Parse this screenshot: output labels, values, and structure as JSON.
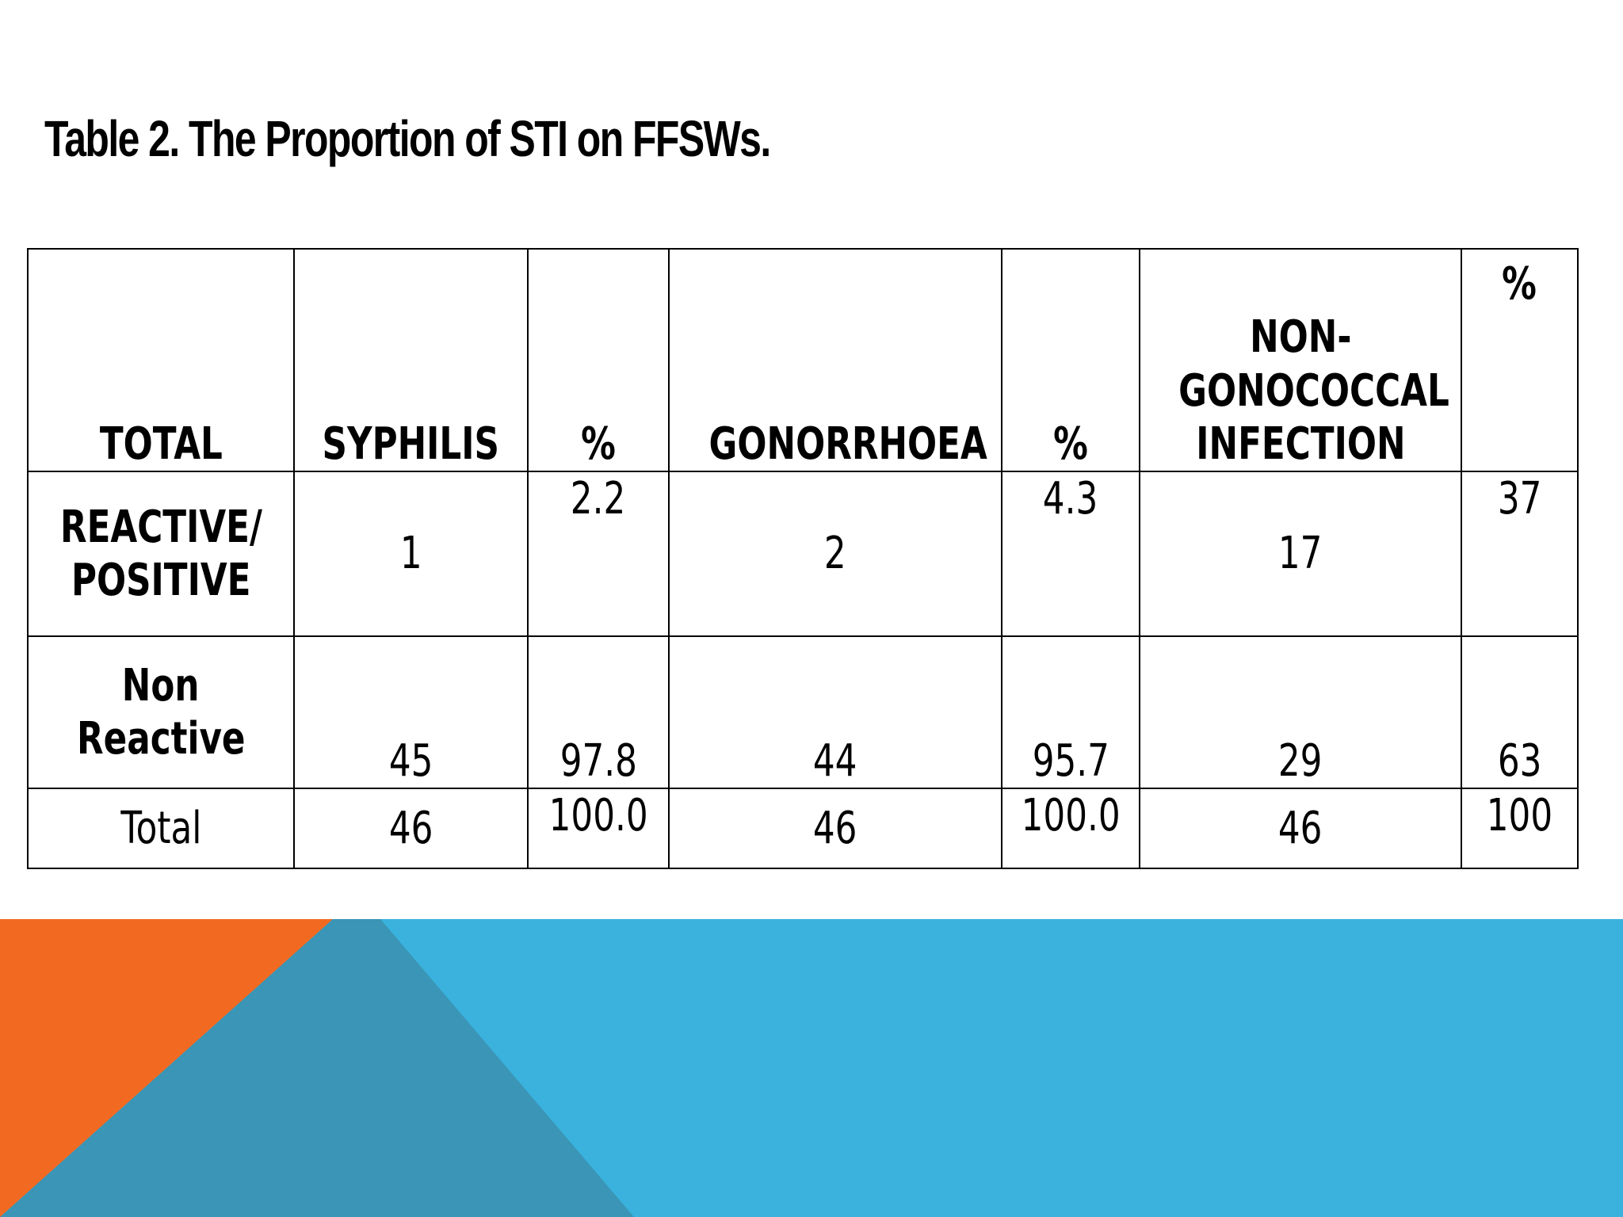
{
  "title": "Table 2. The Proportion of STI on FFSWs.",
  "table": {
    "headers": {
      "total": "TOTAL",
      "syphilis": "SYPHILIS",
      "pct1": "%",
      "gonorrhoea": "GONORRHOEA",
      "pct2": "%",
      "ngi_line1": "NON-",
      "ngi_line2": "GONOCOCCAL",
      "ngi_line3": "INFECTION",
      "pct3": "%"
    },
    "rows": [
      {
        "label_line1": "REACTIVE/",
        "label_line2": "POSITIVE",
        "syphilis": "1",
        "syphilis_pct": "2.2",
        "gonorrhoea": "2",
        "gonorrhoea_pct": "4.3",
        "ngi": "17",
        "ngi_pct": "37"
      },
      {
        "label_line1": "Non",
        "label_line2": "Reactive",
        "syphilis": "45",
        "syphilis_pct": "97.8",
        "gonorrhoea": "44",
        "gonorrhoea_pct": "95.7",
        "ngi": "29",
        "ngi_pct": "63"
      },
      {
        "label": "Total",
        "syphilis": "46",
        "syphilis_pct": "100.0",
        "gonorrhoea": "46",
        "gonorrhoea_pct": "100.0",
        "ngi": "46",
        "ngi_pct": "100"
      }
    ]
  },
  "colors": {
    "orange": "#f26a21",
    "teal_dark": "#3a95b6",
    "sky_blue": "#3ab2dd"
  }
}
